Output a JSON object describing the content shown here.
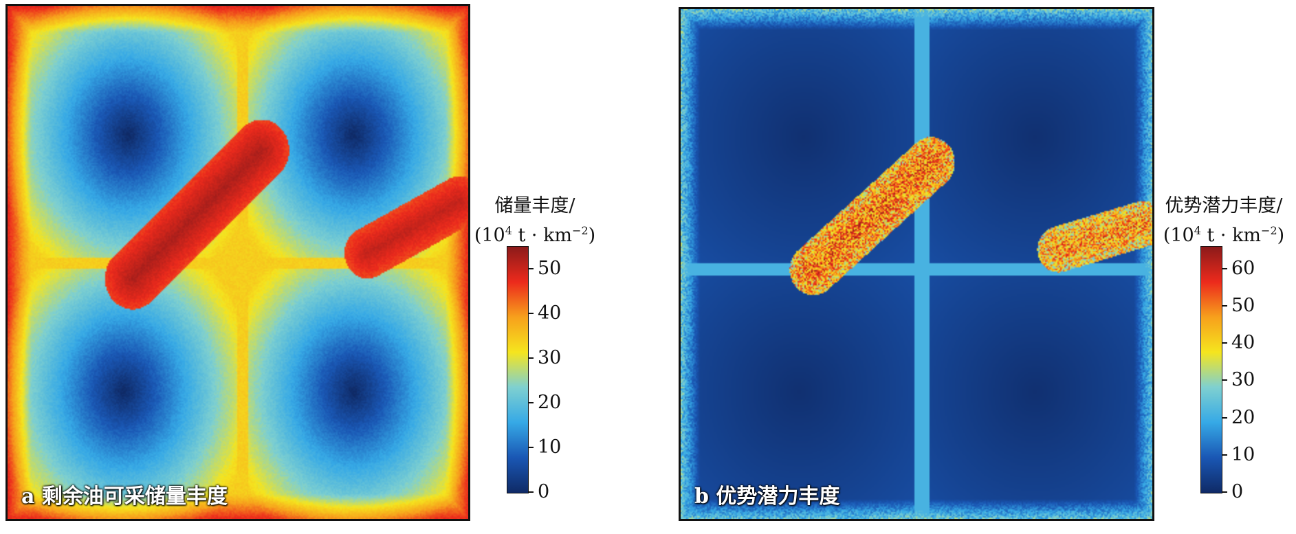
{
  "chart_data": [
    {
      "type": "heatmap",
      "panel_label": "a 剩余油可采储量丰度",
      "colorbar": {
        "title": "储量丰度/",
        "unit_prefix": "(10",
        "unit_sup": "4",
        "unit_middle": " t · km",
        "unit_sup2": "−2",
        "unit_suffix": ")",
        "vmin": 0,
        "vmax": 55,
        "ticks": [
          "0",
          "10",
          "20",
          "30",
          "40",
          "50"
        ]
      },
      "colors": [
        "#0f2a66",
        "#1a57b4",
        "#36a9e6",
        "#7fd0d0",
        "#f5e51e",
        "#f7a01c",
        "#ec2a1c",
        "#8b1a1a"
      ]
    },
    {
      "type": "heatmap",
      "panel_label": "b 优势潜力丰度",
      "colorbar": {
        "title": "优势潜力丰度/",
        "unit_prefix": "(10",
        "unit_sup": "4",
        "unit_middle": " t · km",
        "unit_sup2": "−2",
        "unit_suffix": ")",
        "vmin": 0,
        "vmax": 66,
        "ticks": [
          "0",
          "10",
          "20",
          "30",
          "40",
          "50",
          "60"
        ]
      },
      "colors": [
        "#0f2a66",
        "#1a57b4",
        "#36a9e6",
        "#7fd0d0",
        "#f5e51e",
        "#f7a01c",
        "#ec2a1c",
        "#8b1a1a"
      ]
    }
  ]
}
